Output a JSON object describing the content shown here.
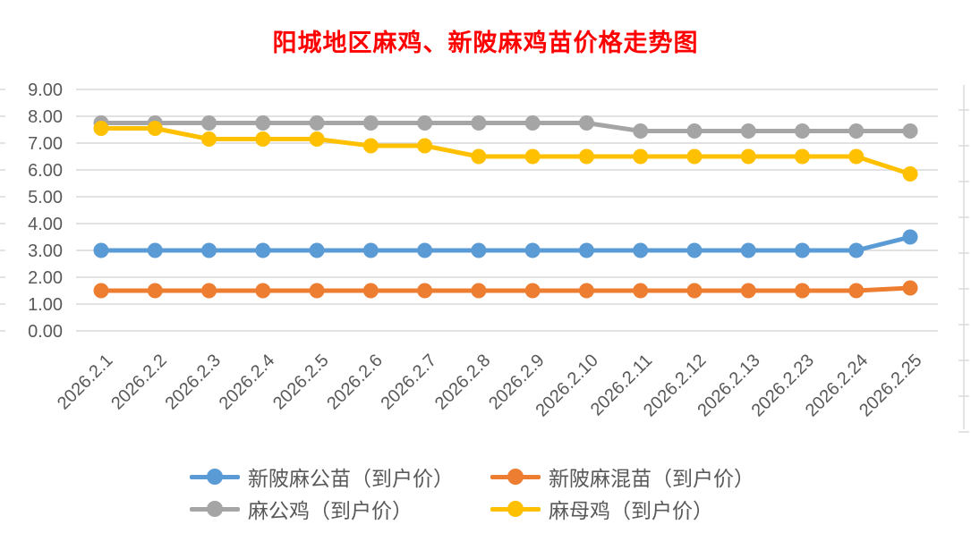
{
  "title": {
    "text": "阳城地区麻鸡、新陂麻鸡苗价格走势图",
    "color": "#FF0000"
  },
  "chart_data": {
    "type": "line",
    "title": "阳城地区麻鸡、新陂麻鸡苗价格走势图",
    "categories": [
      "2026.2.1",
      "2026.2.2",
      "2026.2.3",
      "2026.2.4",
      "2026.2.5",
      "2026.2.6",
      "2026.2.7",
      "2026.2.8",
      "2026.2.9",
      "2026.2.10",
      "2026.2.11",
      "2026.2.12",
      "2026.2.13",
      "2026.2.23",
      "2026.2.24",
      "2026.2.25"
    ],
    "series": [
      {
        "name": "新陂麻公苗（到户价）",
        "color": "#5B9BD5",
        "values": [
          3.0,
          3.0,
          3.0,
          3.0,
          3.0,
          3.0,
          3.0,
          3.0,
          3.0,
          3.0,
          3.0,
          3.0,
          3.0,
          3.0,
          3.0,
          3.5
        ]
      },
      {
        "name": "新陂麻混苗（到户价）",
        "color": "#ED7D31",
        "values": [
          1.5,
          1.5,
          1.5,
          1.5,
          1.5,
          1.5,
          1.5,
          1.5,
          1.5,
          1.5,
          1.5,
          1.5,
          1.5,
          1.5,
          1.5,
          1.6
        ]
      },
      {
        "name": "麻公鸡（到户价）",
        "color": "#A5A5A5",
        "values": [
          7.75,
          7.75,
          7.75,
          7.75,
          7.75,
          7.75,
          7.75,
          7.75,
          7.75,
          7.75,
          7.45,
          7.45,
          7.45,
          7.45,
          7.45,
          7.45
        ]
      },
      {
        "name": "麻母鸡（到户价）",
        "color": "#FFC000",
        "values": [
          7.55,
          7.55,
          7.15,
          7.15,
          7.15,
          6.9,
          6.9,
          6.5,
          6.5,
          6.5,
          6.5,
          6.5,
          6.5,
          6.5,
          6.5,
          5.85
        ]
      }
    ],
    "xlabel": "",
    "ylabel": "",
    "ylim": [
      0,
      9
    ],
    "y_tick_labels": [
      "9.00",
      "8.00",
      "7.00",
      "6.00",
      "5.00",
      "4.00",
      "3.00",
      "2.00",
      "1.00",
      "0.00"
    ],
    "grid": true,
    "legend_position": "bottom",
    "marker": "circle",
    "colors": {
      "grid": "#D9D9D9",
      "axis_text": "#595959"
    }
  }
}
